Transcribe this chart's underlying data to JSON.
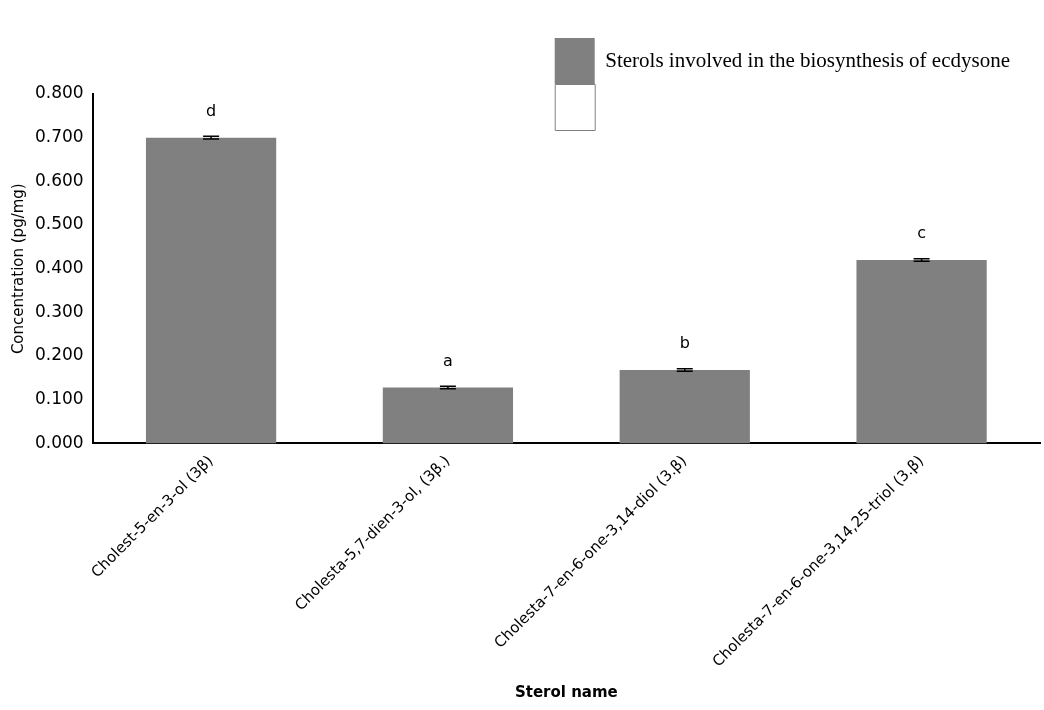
{
  "chart_data": {
    "type": "bar",
    "xlabel": "Sterol name",
    "ylabel": "Concentration (pg/mg)",
    "categories": [
      "Cholest-5-en-3-ol (3β)",
      "Cholesta-5,7-dien-3-ol, (3β.)",
      "Cholesta-7-en-6-one-3,14-diol (3.β)",
      "Cholesta-7-en-6-one-3,14,25-triol (3.β)"
    ],
    "series": [
      {
        "name": "Sterols involved in the biosynthesis of ecdysone",
        "color": "#808080",
        "values": [
          0.7,
          0.128,
          0.168,
          0.42
        ],
        "errors": [
          0.003,
          0.003,
          0.003,
          0.003
        ]
      }
    ],
    "ylim": [
      0,
      0.8
    ],
    "yticks": [
      {
        "value": 0,
        "label": "0.000"
      },
      {
        "value": 0.1,
        "label": "0.100"
      },
      {
        "value": 0.2,
        "label": "0.200"
      },
      {
        "value": 0.3,
        "label": "0.300"
      },
      {
        "value": 0.4,
        "label": "0.400"
      },
      {
        "value": 0.5,
        "label": "0.500"
      },
      {
        "value": 0.6,
        "label": "0.600"
      },
      {
        "value": 0.7,
        "label": "0.700"
      },
      {
        "value": 0.8,
        "label": "0.800"
      }
    ],
    "annotations": [
      {
        "text": "d",
        "x": "Cholest-5-en-3-ol (3β)",
        "y": 0.7
      },
      {
        "text": "a",
        "x": "Cholesta-5,7-dien-3-ol, (3β.)",
        "y": 0.128
      },
      {
        "text": "b",
        "x": "Cholesta-7-en-6-one-3,14-diol (3.β)",
        "y": 0.168
      },
      {
        "text": "c",
        "x": "Cholesta-7-en-6-one-3,14,25-triol (3.β)",
        "y": 0.42
      }
    ],
    "grid": false,
    "legend": "top right"
  }
}
